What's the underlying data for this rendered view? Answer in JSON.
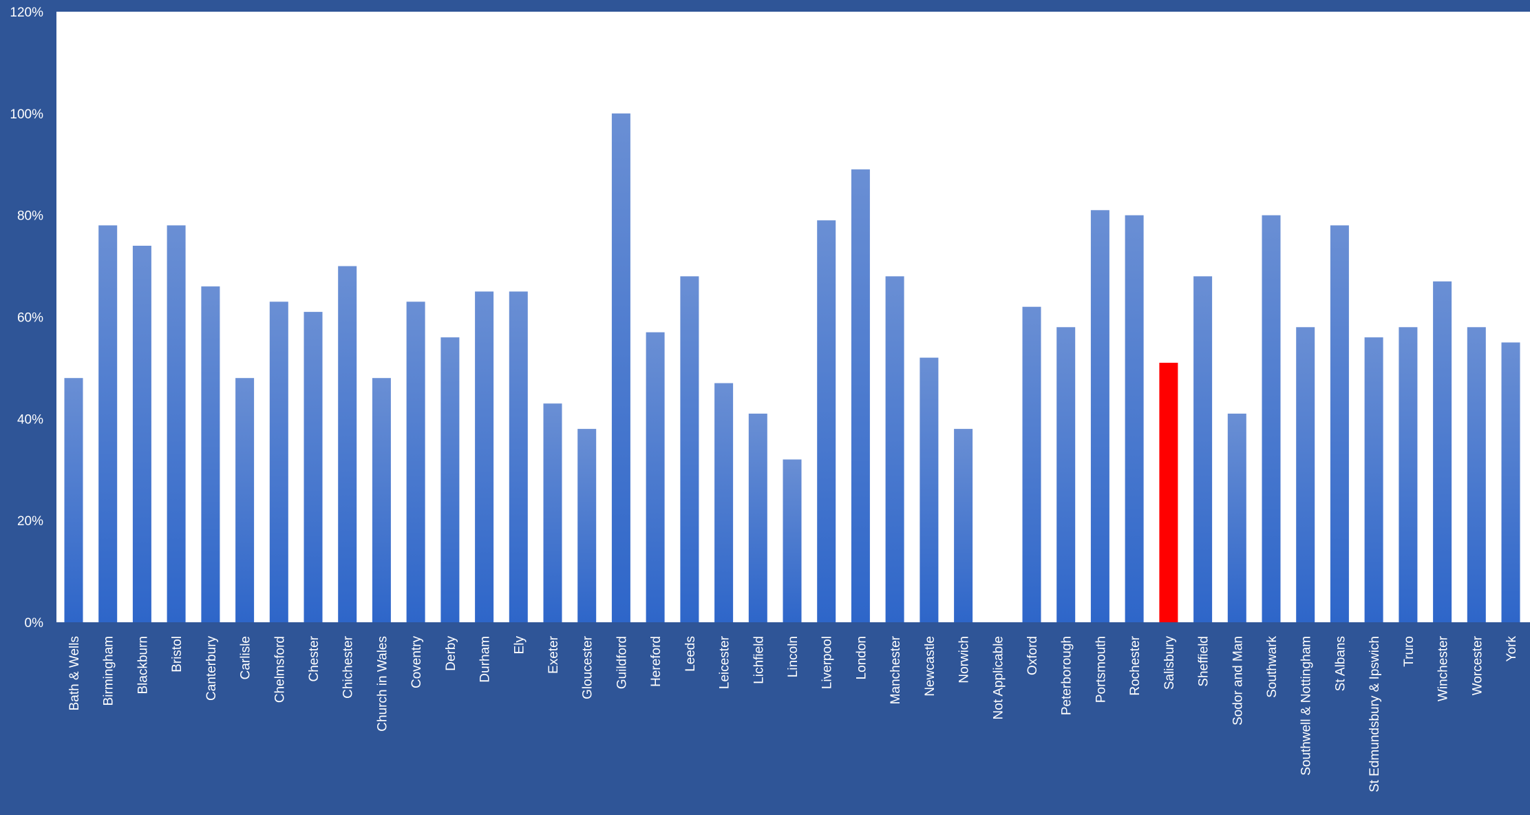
{
  "chart_data": {
    "type": "bar",
    "title": "",
    "xlabel": "",
    "ylabel": "",
    "ylim": [
      0,
      120
    ],
    "y_ticks": [
      "0%",
      "20%",
      "40%",
      "60%",
      "80%",
      "100%",
      "120%"
    ],
    "grid": false,
    "legend": "none",
    "colors": {
      "background": "#2F5597",
      "plot_area": "#FFFFFF",
      "bar_top": "#6A8FD4",
      "bar_bottom": "#2E66C9",
      "highlight": "#FF0000",
      "text": "#FFFFFF"
    },
    "highlight_category": "Salisbury",
    "categories": [
      "Bath & Wells",
      "Birmingham",
      "Blackburn",
      "Bristol",
      "Canterbury",
      "Carlisle",
      "Chelmsford",
      "Chester",
      "Chichester",
      "Church in Wales",
      "Coventry",
      "Derby",
      "Durham",
      "Ely",
      "Exeter",
      "Gloucester",
      "Guildford",
      "Hereford",
      "Leeds",
      "Leicester",
      "Lichfield",
      "Lincoln",
      "Liverpool",
      "London",
      "Manchester",
      "Newcastle",
      "Norwich",
      "Not Applicable",
      "Oxford",
      "Peterborough",
      "Portsmouth",
      "Rochester",
      "Salisbury",
      "Sheffield",
      "Sodor and Man",
      "Southwark",
      "Southwell & Nottingham",
      "St Albans",
      "St Edmundsbury & Ipswich",
      "Truro",
      "Winchester",
      "Worcester",
      "York"
    ],
    "values": [
      48,
      78,
      74,
      78,
      66,
      48,
      63,
      61,
      70,
      48,
      63,
      56,
      65,
      65,
      43,
      38,
      100,
      57,
      68,
      47,
      41,
      32,
      79,
      89,
      68,
      52,
      38,
      0,
      62,
      58,
      81,
      80,
      51,
      68,
      41,
      80,
      58,
      78,
      56,
      58,
      67,
      58,
      55
    ]
  }
}
